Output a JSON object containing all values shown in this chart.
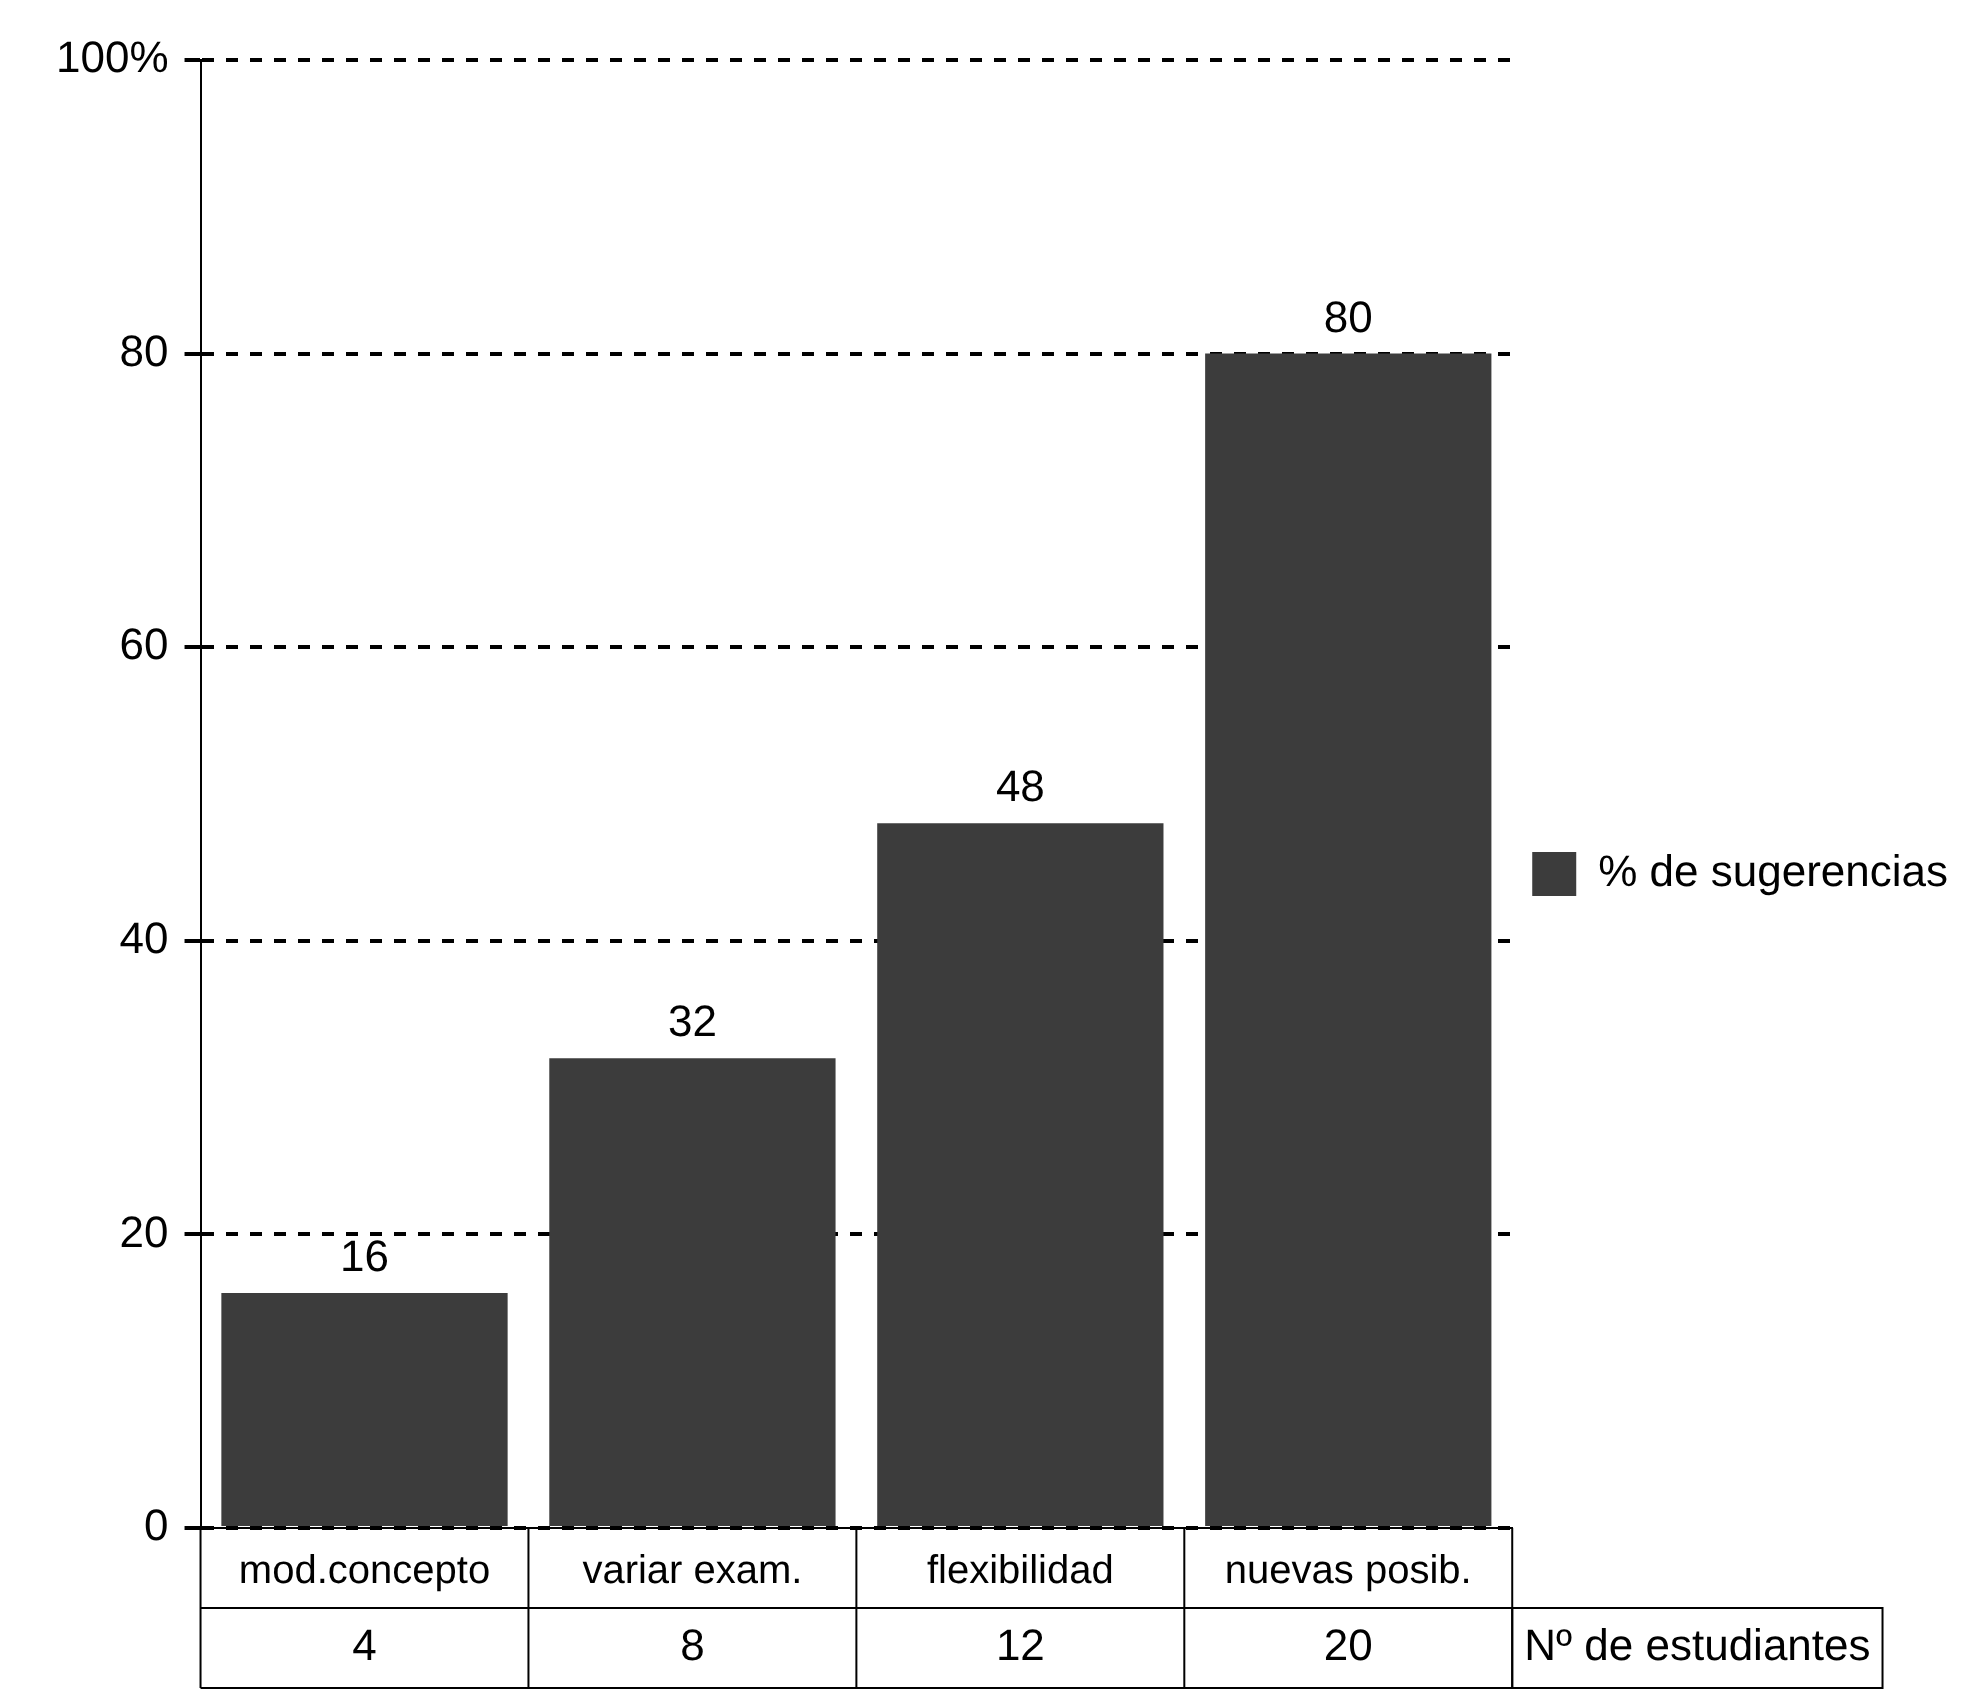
{
  "chart_data": {
    "type": "bar",
    "categories": [
      "mod.concepto",
      "variar exam.",
      "flexibilidad",
      "nuevas posib."
    ],
    "series": [
      {
        "name": "% de sugerencias",
        "color": "#3c3c3c",
        "values": [
          16,
          32,
          48,
          80
        ]
      }
    ],
    "ylim": [
      0,
      100
    ],
    "yticks": [
      0,
      20,
      40,
      60,
      80,
      {
        "value": 100,
        "label": "100%"
      }
    ],
    "grid": "y",
    "line_style": "dashed",
    "legend": "right",
    "data_labels": true,
    "annotations": [
      "Nº de estudiantes",
      "4",
      "8",
      "12",
      "20"
    ]
  }
}
